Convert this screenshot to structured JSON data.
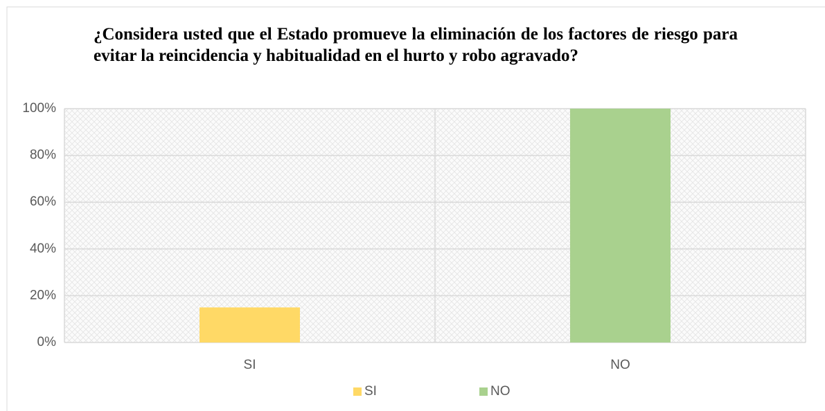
{
  "chart_data": {
    "type": "bar",
    "title": "¿Considera usted que el Estado promueve la eliminación de los factores de riesgo para evitar la reincidencia y habitualidad en el hurto y robo agravado?",
    "categories": [
      "SI",
      "NO"
    ],
    "series": [
      {
        "name": "SI",
        "color": "#ffd966",
        "values": [
          15,
          null
        ]
      },
      {
        "name": "NO",
        "color": "#a9d18e",
        "values": [
          null,
          100
        ]
      }
    ],
    "ylim": [
      0,
      100
    ],
    "yticks": [
      {
        "value": 0,
        "label": "0%"
      },
      {
        "value": 20,
        "label": "20%"
      },
      {
        "value": 40,
        "label": "40%"
      },
      {
        "value": 60,
        "label": "60%"
      },
      {
        "value": 80,
        "label": "80%"
      },
      {
        "value": 100,
        "label": "100%"
      }
    ],
    "grid": true,
    "legend": "bottom"
  }
}
